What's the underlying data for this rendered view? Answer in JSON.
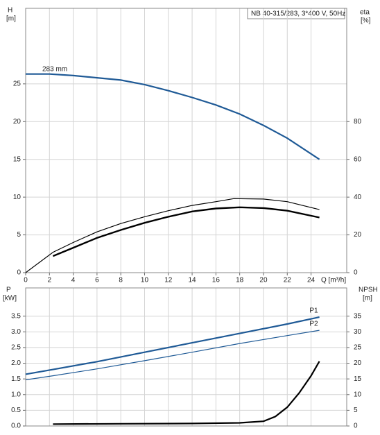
{
  "chart_data": [
    {
      "type": "line",
      "title": "NB 40-315/283, 3*400 V, 50Hz",
      "y_label": "H",
      "y_unit": "[m]",
      "y2_label": "eta",
      "y2_unit": "[%]",
      "x_label": "Q [m³/h]",
      "xlim": [
        0,
        27
      ],
      "xticks": [
        0,
        2,
        4,
        6,
        8,
        10,
        12,
        14,
        16,
        18,
        20,
        22,
        24
      ],
      "ylim": [
        0,
        35
      ],
      "yticks": [
        0,
        5,
        10,
        15,
        20,
        25
      ],
      "y2lim": [
        0,
        140
      ],
      "y2ticks": [
        0,
        20,
        40,
        60,
        80
      ],
      "grid": true,
      "series": [
        {
          "name": "283 mm",
          "color": "#1f5a96",
          "linewidth": 2.2,
          "x": [
            0,
            2,
            4,
            6,
            8,
            10,
            12,
            14,
            16,
            18,
            20,
            22,
            24.7
          ],
          "values": [
            26.3,
            26.3,
            26.1,
            25.8,
            25.5,
            24.9,
            24.1,
            23.2,
            22.2,
            21.0,
            19.5,
            17.8,
            15.0
          ]
        },
        {
          "color": "#000000",
          "linewidth": 1.2,
          "axis": "y2",
          "x": [
            0,
            2.3,
            4,
            6,
            8,
            10,
            12,
            14,
            16,
            17.5,
            20,
            22,
            24.7
          ],
          "values": [
            0,
            10.8,
            16,
            21.6,
            26,
            29.6,
            32.8,
            35.6,
            37.6,
            39.2,
            39,
            37.6,
            33.4
          ]
        },
        {
          "color": "#000000",
          "linewidth": 2.4,
          "axis": "y2",
          "x": [
            2.3,
            4,
            6,
            8,
            10,
            12,
            14,
            16,
            18,
            20,
            22,
            24.7
          ],
          "values": [
            8.8,
            13.2,
            18.4,
            22.6,
            26.4,
            29.6,
            32.4,
            34,
            34.6,
            34.2,
            32.8,
            29.2
          ]
        }
      ]
    },
    {
      "type": "line",
      "y_label": "P",
      "y_unit": "[kW]",
      "y2_label": "NPSH",
      "y2_unit": "[m]",
      "xlim": [
        0,
        27
      ],
      "ylim": [
        0,
        4.4
      ],
      "yticks": [
        {
          "value": 0,
          "label": "0.0"
        },
        0.5,
        {
          "value": 1,
          "label": "1.0"
        },
        1.5,
        {
          "value": 2,
          "label": "2.0"
        },
        2.5,
        {
          "value": 3,
          "label": "3.0"
        },
        3.5
      ],
      "y2lim": [
        0,
        44
      ],
      "y2ticks": [
        0,
        5,
        10,
        15,
        20,
        25,
        30,
        35
      ],
      "grid": true,
      "series": [
        {
          "name": "P1",
          "color": "#1f5a96",
          "linewidth": 2.2,
          "x": [
            0,
            2.3,
            6,
            10,
            14,
            18,
            22,
            24.7
          ],
          "values": [
            1.65,
            1.8,
            2.05,
            2.35,
            2.65,
            2.95,
            3.25,
            3.47
          ]
        },
        {
          "name": "P2",
          "color": "#1f5a96",
          "linewidth": 1.2,
          "x": [
            0,
            2.3,
            6,
            10,
            14,
            18,
            22,
            24.7
          ],
          "values": [
            1.47,
            1.6,
            1.82,
            2.08,
            2.35,
            2.63,
            2.88,
            3.05
          ]
        },
        {
          "color": "#000000",
          "linewidth": 2.2,
          "axis": "y2",
          "x": [
            2.3,
            8,
            14,
            18,
            20,
            21,
            22,
            23,
            24,
            24.7
          ],
          "values": [
            0.6,
            0.7,
            0.8,
            1.0,
            1.5,
            3,
            6,
            10.5,
            16,
            20.6
          ]
        }
      ]
    }
  ]
}
